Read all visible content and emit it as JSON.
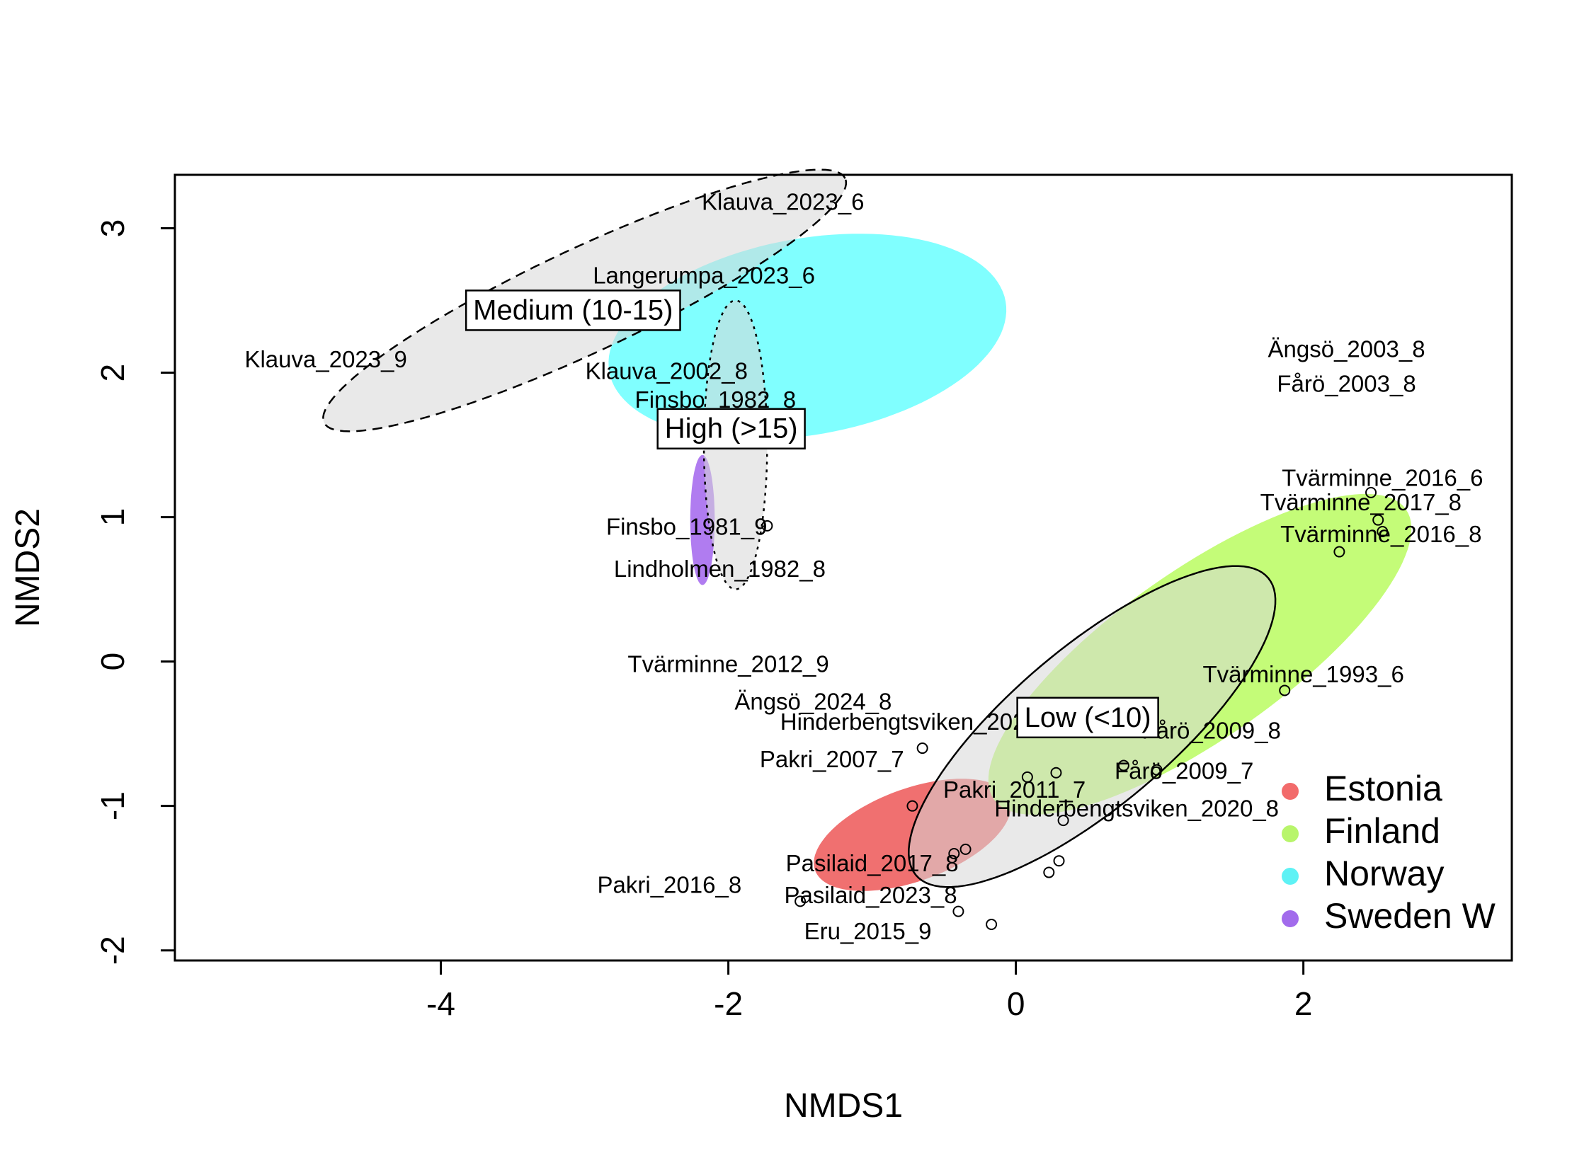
{
  "chart_data": {
    "type": "scatter",
    "title": "",
    "xlabel": "NMDS1",
    "ylabel": "NMDS2",
    "xlim": [
      -5.85,
      3.45
    ],
    "ylim": [
      -2.07,
      3.37
    ],
    "xticks": [
      "-4",
      "-2",
      "0",
      "2"
    ],
    "yticks": [
      "-2",
      "-1",
      "0",
      "1",
      "2",
      "3"
    ],
    "xtick_values": [
      -4,
      -2,
      0,
      2
    ],
    "ytick_values": [
      -2,
      -1,
      0,
      1,
      2,
      3
    ],
    "grid": false,
    "legend_position": "bottom-right",
    "legend": [
      {
        "name": "Estonia",
        "color": "#f26b6b"
      },
      {
        "name": "Finland",
        "color": "#b8f56b"
      },
      {
        "name": "Norway",
        "color": "#5ef2f5"
      },
      {
        "name": "Sweden W",
        "color": "#a26bec"
      }
    ],
    "country_ellipses": [
      {
        "name": "Norway",
        "color": "#80ffff",
        "cx": -1.45,
        "cy": 2.25,
        "rx": 1.4,
        "ry": 0.68,
        "angle": 10
      },
      {
        "name": "Estonia",
        "color": "#f07070",
        "cx": -0.72,
        "cy": -1.2,
        "rx": 0.72,
        "ry": 0.32,
        "angle": 20
      },
      {
        "name": "Finland",
        "color": "#c4fc78",
        "cx": 1.28,
        "cy": 0.05,
        "rx": 1.75,
        "ry": 0.58,
        "angle": 35
      },
      {
        "name": "Sweden W",
        "color": "#b07cf0",
        "cx": -2.18,
        "cy": 0.98,
        "rx": 0.085,
        "ry": 0.45,
        "angle": 0
      }
    ],
    "group_ellipses": [
      {
        "label": "Medium (10-15)",
        "style": "dashed",
        "cx": -3.0,
        "cy": 2.5,
        "rx": 2.0,
        "ry": 0.36,
        "angle": 25,
        "label_x": -3.08,
        "label_y": 2.42
      },
      {
        "label": "High (>15)",
        "style": "dotted",
        "cx": -1.95,
        "cy": 1.5,
        "rx": 0.22,
        "ry": 1.0,
        "angle": 0,
        "label_x": -1.98,
        "label_y": 1.6
      },
      {
        "label": "Low (<10)",
        "style": "solid",
        "cx": 0.53,
        "cy": -0.45,
        "rx": 1.6,
        "ry": 0.55,
        "angle": 40,
        "label_x": 0.5,
        "label_y": -0.4
      }
    ],
    "points": [
      {
        "x": -1.73,
        "y": 0.94
      },
      {
        "x": -0.65,
        "y": -0.6
      },
      {
        "x": -0.72,
        "y": -1.0
      },
      {
        "x": -0.43,
        "y": -1.33
      },
      {
        "x": -0.35,
        "y": -1.3
      },
      {
        "x": 0.08,
        "y": -0.8
      },
      {
        "x": 0.28,
        "y": -0.77
      },
      {
        "x": 0.33,
        "y": -1.1
      },
      {
        "x": 0.75,
        "y": -0.72
      },
      {
        "x": 0.98,
        "y": -0.75
      },
      {
        "x": 0.23,
        "y": -1.46
      },
      {
        "x": 0.3,
        "y": -1.38
      },
      {
        "x": -1.5,
        "y": -1.66
      },
      {
        "x": -0.4,
        "y": -1.73
      },
      {
        "x": -0.17,
        "y": -1.82
      },
      {
        "x": 1.87,
        "y": -0.2
      },
      {
        "x": 2.25,
        "y": 0.76
      },
      {
        "x": 2.47,
        "y": 1.17
      },
      {
        "x": 2.52,
        "y": 0.98
      },
      {
        "x": 2.55,
        "y": 0.9
      }
    ],
    "labels": [
      {
        "text": "Klauva_2023_6",
        "x": -1.62,
        "y": 3.17
      },
      {
        "text": "Langerumpa_2023_6",
        "x": -2.17,
        "y": 2.66
      },
      {
        "text": "Klauva_2023_9",
        "x": -4.8,
        "y": 2.08
      },
      {
        "text": "Klauva_2002_8",
        "x": -2.43,
        "y": 2.0
      },
      {
        "text": "Finsbo_1982_8",
        "x": -2.09,
        "y": 1.8
      },
      {
        "text": "Finsbo_1981_9",
        "x": -2.29,
        "y": 0.92
      },
      {
        "text": "Lindholmen_1982_8",
        "x": -2.06,
        "y": 0.63
      },
      {
        "text": "Ängsö_2003_8",
        "x": 2.3,
        "y": 2.15
      },
      {
        "text": "Fårö_2003_8",
        "x": 2.3,
        "y": 1.91
      },
      {
        "text": "Tvärminne_2016_6",
        "x": 2.55,
        "y": 1.26
      },
      {
        "text": "Tvärminne_2017_8",
        "x": 2.4,
        "y": 1.09
      },
      {
        "text": "Tvärminne_2016_8",
        "x": 2.54,
        "y": 0.87
      },
      {
        "text": "Tvärminne_2012_9",
        "x": -2.0,
        "y": -0.03
      },
      {
        "text": "Tvärminne_1993_6",
        "x": 2.0,
        "y": -0.1
      },
      {
        "text": "Ängsö_2024_8",
        "x": -1.41,
        "y": -0.29
      },
      {
        "text": "Hinderbengtsviken_2024_8",
        "x": -0.65,
        "y": -0.43
      },
      {
        "text": "Fårö_2009_8",
        "x": 1.36,
        "y": -0.49
      },
      {
        "text": "Pakri_2007_7",
        "x": -1.28,
        "y": -0.69
      },
      {
        "text": "Fårö_2009_7",
        "x": 1.17,
        "y": -0.77
      },
      {
        "text": "Pakri_2011_7",
        "x": -0.01,
        "y": -0.9
      },
      {
        "text": "Hinderbengtsviken_2020_8",
        "x": 0.84,
        "y": -1.03
      },
      {
        "text": "Pasilaid_2017_8",
        "x": -1.0,
        "y": -1.41
      },
      {
        "text": "Pakri_2016_8",
        "x": -2.41,
        "y": -1.56
      },
      {
        "text": "Pasilaid_2023_8",
        "x": -1.01,
        "y": -1.63
      },
      {
        "text": "Eru_2015_9",
        "x": -1.03,
        "y": -1.88
      }
    ]
  }
}
